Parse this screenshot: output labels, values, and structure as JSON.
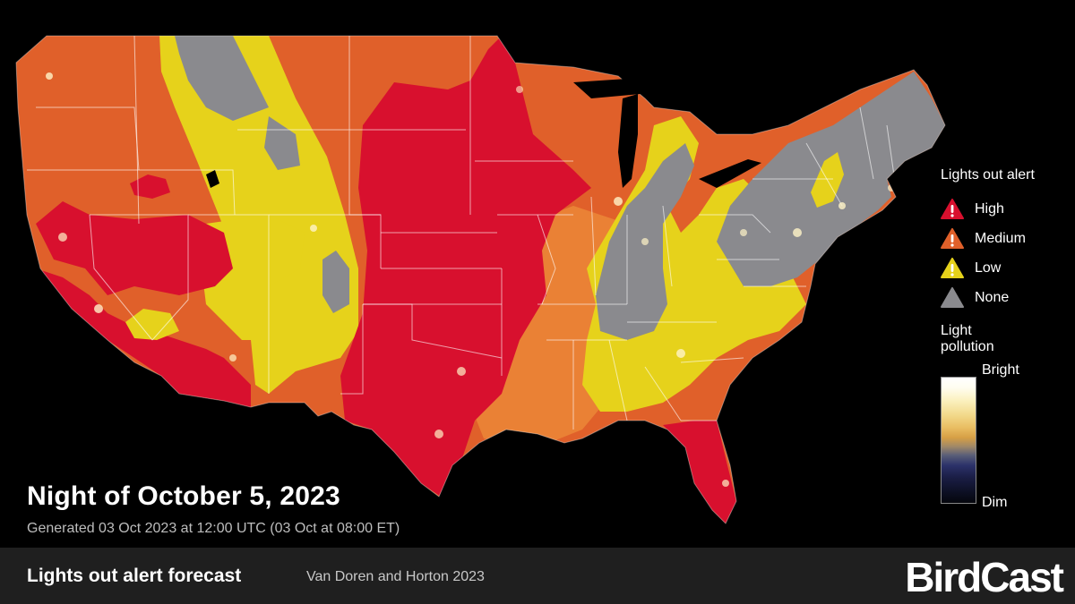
{
  "title": "Night of October 5, 2023",
  "generated": "Generated 03 Oct 2023 at 12:00 UTC (03 Oct at 08:00 ET)",
  "legend": {
    "heading": "Lights out alert",
    "levels": [
      {
        "label": "High",
        "color": "#d8102e"
      },
      {
        "label": "Medium",
        "color": "#e0602a"
      },
      {
        "label": "Low",
        "color": "#e6d21b"
      },
      {
        "label": "None",
        "color": "#8a8a8e"
      }
    ]
  },
  "light_pollution": {
    "heading_line1": "Light",
    "heading_line2": "pollution",
    "bright_label": "Bright",
    "dim_label": "Dim"
  },
  "footer": {
    "title": "Lights out alert forecast",
    "credit": "Van Doren and Horton 2023",
    "brand": "BirdCast"
  },
  "alert_colors": {
    "high": "#d8102e",
    "medium": "#e0602a",
    "medium_light": "#ec8a38",
    "low": "#e6d21b",
    "none": "#8a8a8e"
  }
}
